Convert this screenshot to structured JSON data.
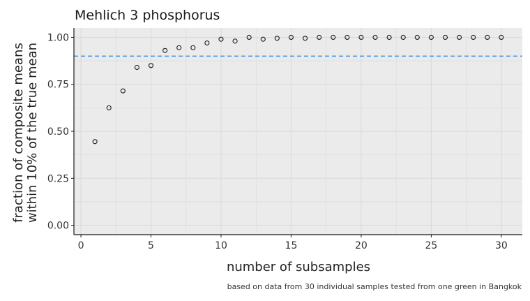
{
  "chart_data": {
    "type": "scatter",
    "title": "Mehlich 3 phosphorus",
    "xlabel": "number of subsamples",
    "ylabel_lines": [
      "fraction of composite means",
      "within 10% of the true mean"
    ],
    "caption": "based on data from 30 individual samples tested from one green in Bangkok",
    "xlim": [
      -0.5,
      31.5
    ],
    "ylim": [
      -0.05,
      1.05
    ],
    "x_ticks": [
      0,
      5,
      10,
      15,
      20,
      25,
      30
    ],
    "x_tick_labels": [
      "0",
      "5",
      "10",
      "15",
      "20",
      "25",
      "30"
    ],
    "y_ticks": [
      0,
      0.25,
      0.5,
      0.75,
      1.0
    ],
    "y_tick_labels": [
      "0.00",
      "0.25",
      "0.50",
      "0.75",
      "1.00"
    ],
    "reference_line": {
      "y": 0.9,
      "style": "dashed",
      "color": "#3b8fe0"
    },
    "grid": true,
    "point_color": "#1a1a1a",
    "panel_color": "#ebebeb",
    "grid_color": "#d9d9d9",
    "x": [
      1,
      2,
      3,
      4,
      5,
      6,
      7,
      8,
      9,
      10,
      11,
      12,
      13,
      14,
      15,
      16,
      17,
      18,
      19,
      20,
      21,
      22,
      23,
      24,
      25,
      26,
      27,
      28,
      29,
      30
    ],
    "y": [
      0.445,
      0.625,
      0.715,
      0.84,
      0.85,
      0.93,
      0.945,
      0.945,
      0.97,
      0.99,
      0.98,
      1.0,
      0.99,
      0.995,
      1.0,
      0.995,
      1.0,
      1.0,
      1.0,
      1.0,
      1.0,
      1.0,
      1.0,
      1.0,
      1.0,
      1.0,
      1.0,
      1.0,
      1.0,
      1.0
    ]
  }
}
